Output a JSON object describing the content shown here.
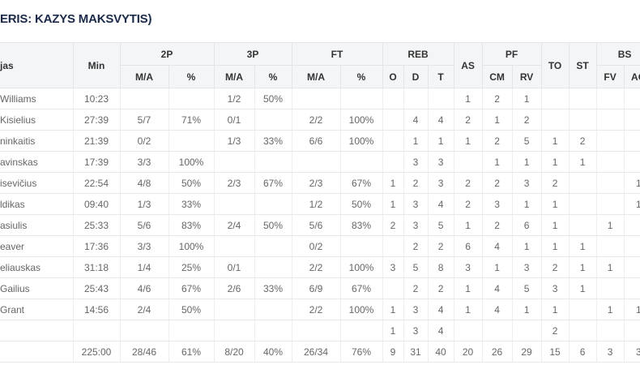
{
  "title": "ERIS: KAZYS MAKSVYTIS)",
  "table": {
    "header_top": [
      "jas",
      "Min",
      "2P",
      "3P",
      "FT",
      "REB",
      "AS",
      "PF",
      "TO",
      "ST",
      "BS"
    ],
    "header_sub": [
      "M/A",
      "%",
      "M/A",
      "%",
      "M/A",
      "%",
      "O",
      "D",
      "T",
      "CM",
      "RV",
      "FV",
      "AG"
    ],
    "rows": [
      [
        "Williams",
        "10:23",
        null,
        null,
        "1/2",
        "50%",
        null,
        null,
        null,
        null,
        null,
        "1",
        "2",
        "1",
        null,
        null,
        null,
        null
      ],
      [
        "Kisielius",
        "27:39",
        "5/7",
        "71%",
        "0/1",
        null,
        "2/2",
        "100%",
        null,
        "4",
        "4",
        "2",
        "1",
        "2",
        null,
        null,
        null,
        null
      ],
      [
        "ninkaitis",
        "21:39",
        "0/2",
        null,
        "1/3",
        "33%",
        "6/6",
        "100%",
        null,
        "1",
        "1",
        "1",
        "2",
        "5",
        "1",
        "2",
        null,
        null
      ],
      [
        "avinskas",
        "17:39",
        "3/3",
        "100%",
        null,
        null,
        null,
        null,
        null,
        "3",
        "3",
        null,
        "1",
        "1",
        "1",
        "1",
        null,
        null
      ],
      [
        "isevičius",
        "22:54",
        "4/8",
        "50%",
        "2/3",
        "67%",
        "2/3",
        "67%",
        "1",
        "2",
        "3",
        "2",
        "2",
        "3",
        "2",
        null,
        null,
        "1"
      ],
      [
        "ldikas",
        "09:40",
        "1/3",
        "33%",
        null,
        null,
        "1/2",
        "50%",
        "1",
        "3",
        "4",
        "2",
        "3",
        "1",
        "1",
        null,
        null,
        "1"
      ],
      [
        "asiulis",
        "25:33",
        "5/6",
        "83%",
        "2/4",
        "50%",
        "5/6",
        "83%",
        "2",
        "3",
        "5",
        "1",
        "2",
        "6",
        "1",
        null,
        "1",
        null
      ],
      [
        "eaver",
        "17:36",
        "3/3",
        "100%",
        null,
        null,
        "0/2",
        null,
        null,
        "2",
        "2",
        "6",
        "4",
        "1",
        "1",
        "1",
        null,
        null
      ],
      [
        "eliauskas",
        "31:18",
        "1/4",
        "25%",
        "0/1",
        null,
        "2/2",
        "100%",
        "3",
        "5",
        "8",
        "3",
        "1",
        "3",
        "2",
        "1",
        "1",
        null
      ],
      [
        "Gailius",
        "25:43",
        "4/6",
        "67%",
        "2/6",
        "33%",
        "6/9",
        "67%",
        null,
        "2",
        "2",
        "1",
        "4",
        "5",
        "3",
        "1",
        null,
        null
      ],
      [
        "Grant",
        "14:56",
        "2/4",
        "50%",
        null,
        null,
        "2/2",
        "100%",
        "1",
        "3",
        "4",
        "1",
        "4",
        "1",
        "1",
        null,
        "1",
        "1"
      ],
      [
        null,
        null,
        null,
        null,
        null,
        null,
        null,
        null,
        "1",
        "3",
        "4",
        null,
        null,
        null,
        "2",
        null,
        null,
        null
      ],
      [
        null,
        "225:00",
        "28/46",
        "61%",
        "8/20",
        "40%",
        "26/34",
        "76%",
        "9",
        "31",
        "40",
        "20",
        "26",
        "29",
        "15",
        "6",
        "3",
        "3"
      ]
    ]
  }
}
